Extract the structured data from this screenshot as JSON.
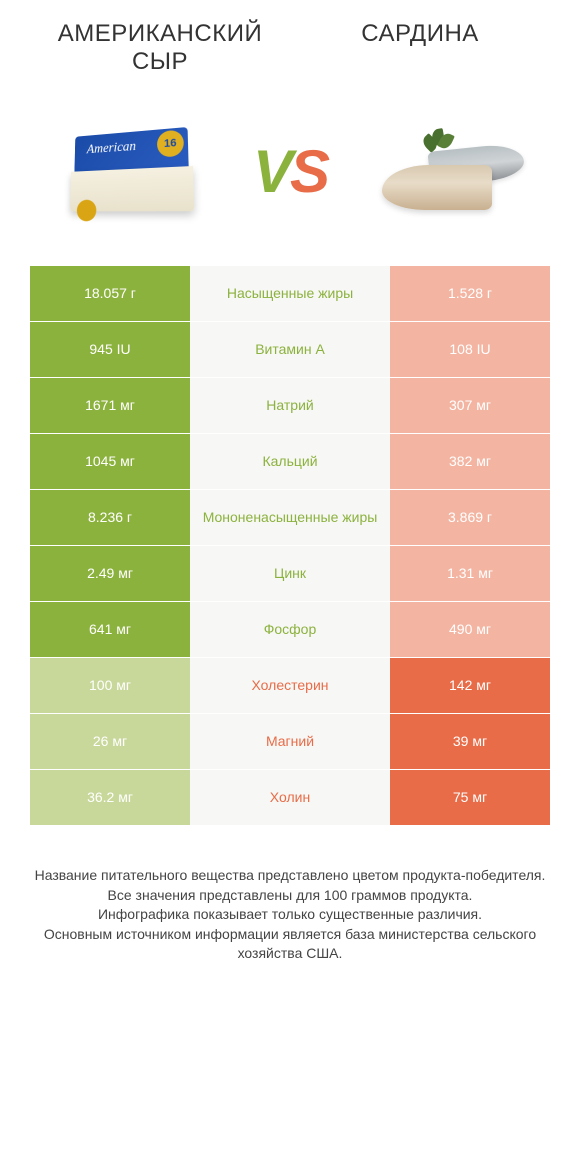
{
  "colors": {
    "green_strong": "#8cb23e",
    "green_light": "#c8d89a",
    "orange_strong": "#e86c48",
    "orange_light": "#f3b5a2",
    "mid_bg": "#f7f7f5"
  },
  "header": {
    "left_title": "АМЕРИКАНСКИЙ СЫР",
    "right_title": "САРДИНА",
    "vs_v": "V",
    "vs_s": "S",
    "cheese_label": "American",
    "cheese_tag": "16"
  },
  "rows": [
    {
      "label": "Насыщенные жиры",
      "left": "18.057 г",
      "right": "1.528 г",
      "winner": "left"
    },
    {
      "label": "Витамин А",
      "left": "945 IU",
      "right": "108 IU",
      "winner": "left"
    },
    {
      "label": "Натрий",
      "left": "1671 мг",
      "right": "307 мг",
      "winner": "left"
    },
    {
      "label": "Кальций",
      "left": "1045 мг",
      "right": "382 мг",
      "winner": "left"
    },
    {
      "label": "Мононенасыщенные жиры",
      "left": "8.236 г",
      "right": "3.869 г",
      "winner": "left"
    },
    {
      "label": "Цинк",
      "left": "2.49 мг",
      "right": "1.31 мг",
      "winner": "left"
    },
    {
      "label": "Фосфор",
      "left": "641 мг",
      "right": "490 мг",
      "winner": "left"
    },
    {
      "label": "Холестерин",
      "left": "100 мг",
      "right": "142 мг",
      "winner": "right"
    },
    {
      "label": "Магний",
      "left": "26 мг",
      "right": "39 мг",
      "winner": "right"
    },
    {
      "label": "Холин",
      "left": "36.2 мг",
      "right": "75 мг",
      "winner": "right"
    }
  ],
  "footer": {
    "line1": "Название питательного вещества представлено цветом продукта-победителя.",
    "line2": "Все значения представлены для 100 граммов продукта.",
    "line3": "Инфографика показывает только существенные различия.",
    "line4": "Основным источником информации является база министерства сельского хозяйства США."
  }
}
